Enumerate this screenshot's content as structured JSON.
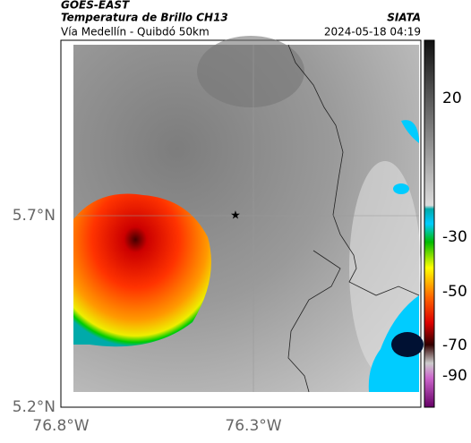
{
  "header": {
    "satellite": "GOES-EAST",
    "product": "Temperatura de Brillo CH13",
    "source": "SIATA",
    "route": "Vía Medellín - Quibdó 50km",
    "timestamp": "2024-05-18 04:19"
  },
  "map": {
    "lat_labels": [
      "5.7°N",
      "5.2°N"
    ],
    "lon_labels": [
      "76.8°W",
      "76.3°W"
    ]
  },
  "colorbar": {
    "ticks": [
      20,
      -30,
      -50,
      -70,
      -90
    ]
  }
}
